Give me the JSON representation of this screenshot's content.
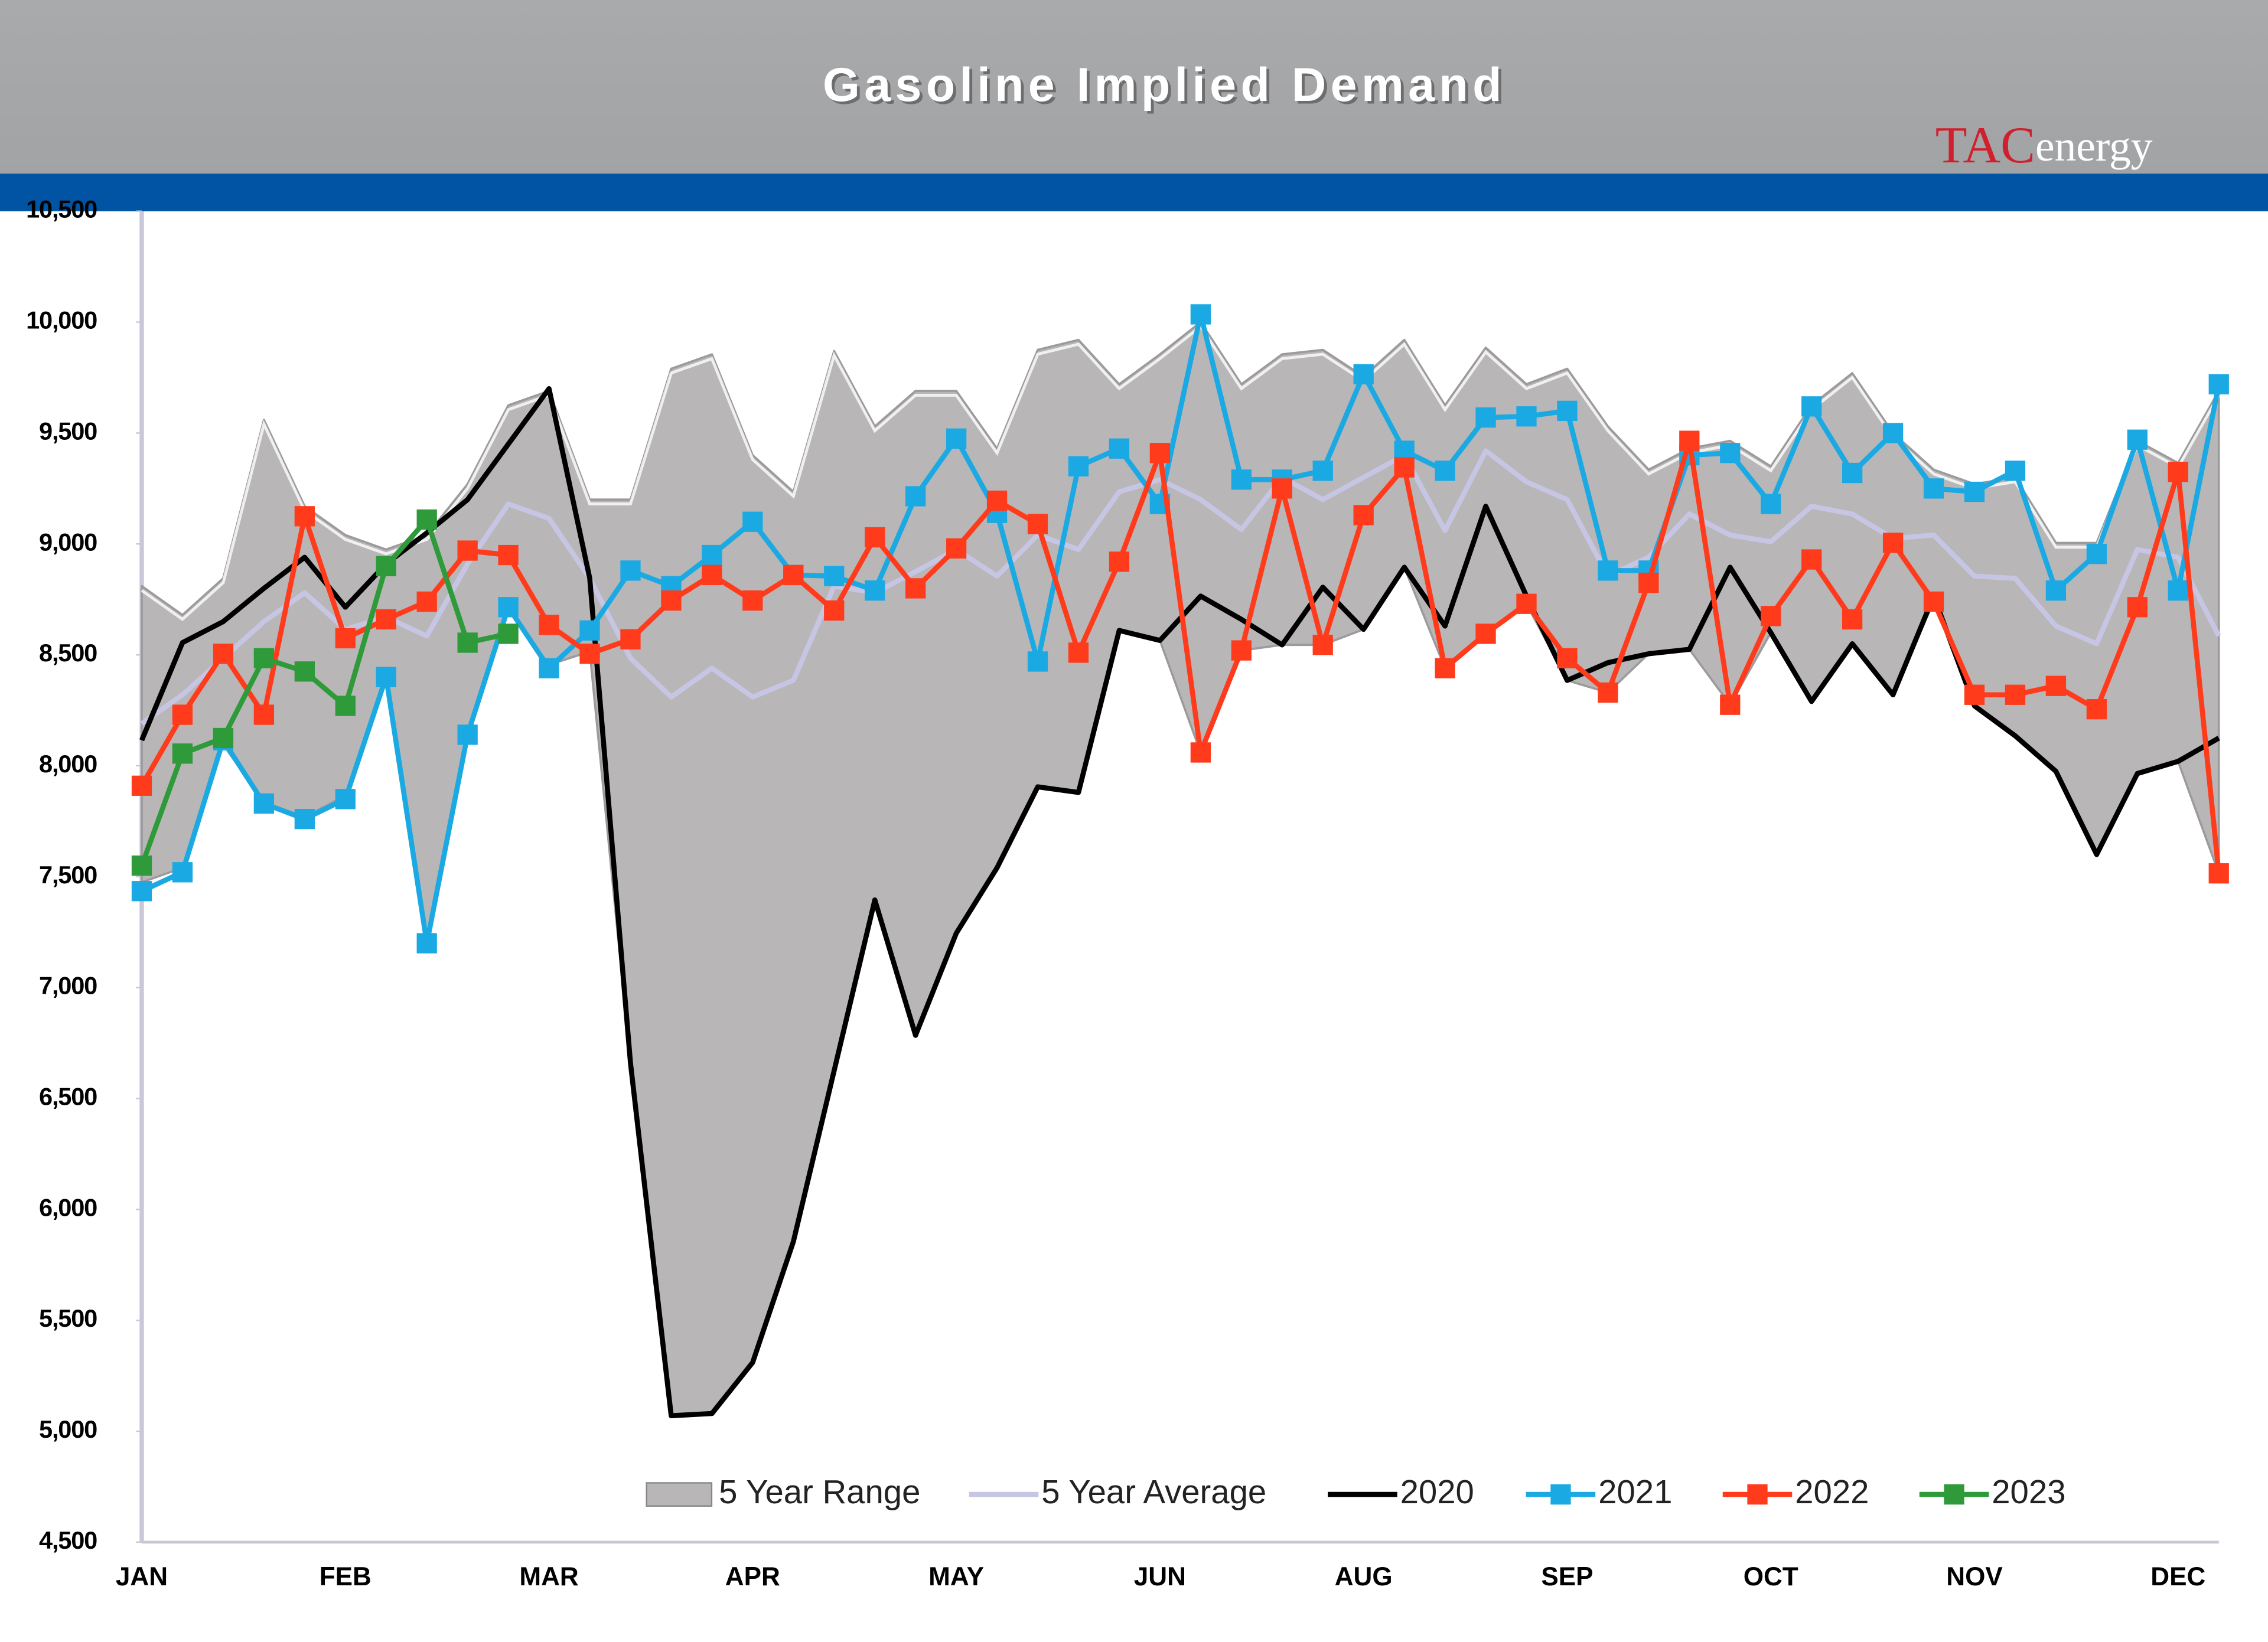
{
  "chart_data": {
    "type": "line",
    "title": "Gasoline Implied Demand",
    "logo": {
      "brand": "TAC",
      "suffix": "energy"
    },
    "categories": [
      "JAN",
      null,
      null,
      null,
      null,
      "FEB",
      null,
      null,
      null,
      null,
      "MAR",
      null,
      null,
      null,
      null,
      "APR",
      null,
      null,
      null,
      null,
      "MAY",
      null,
      null,
      null,
      null,
      "JUN",
      null,
      null,
      null,
      null,
      "AUG",
      null,
      null,
      null,
      null,
      "SEP",
      null,
      null,
      null,
      null,
      "OCT",
      null,
      null,
      null,
      null,
      "NOV",
      null,
      null,
      null,
      null,
      "DEC",
      null
    ],
    "ylim": [
      4500,
      10500
    ],
    "yticks": [
      {
        "value": 4500,
        "label": "4,500"
      },
      {
        "value": 5000,
        "label": "5,000"
      },
      {
        "value": 5500,
        "label": "5,500"
      },
      {
        "value": 6000,
        "label": "6,000"
      },
      {
        "value": 6500,
        "label": "6,500"
      },
      {
        "value": 7000,
        "label": "7,000"
      },
      {
        "value": 7500,
        "label": "7,500"
      },
      {
        "value": 8000,
        "label": "8,000"
      },
      {
        "value": 8500,
        "label": "8,500"
      },
      {
        "value": 9000,
        "label": "9,000"
      },
      {
        "value": 9500,
        "label": "9,500"
      },
      {
        "value": 10000,
        "label": "10,000"
      },
      {
        "value": 10500,
        "label": "10,500"
      }
    ],
    "grid": false,
    "legend": "bottom",
    "series": [
      {
        "name": "5 Year Range",
        "type": "range",
        "color": "#b8b6b6",
        "low": [
          7475,
          7540,
          8095,
          7835,
          7770,
          7865,
          8400,
          7215,
          8160,
          8715,
          8455,
          8515,
          6660,
          5070,
          5080,
          5310,
          5855,
          6625,
          7395,
          6785,
          7245,
          7540,
          7905,
          7880,
          8610,
          8565,
          8060,
          8520,
          8545,
          8545,
          8615,
          8895,
          8440,
          8595,
          8730,
          8385,
          8330,
          8505,
          8525,
          8275,
          8600,
          8290,
          8550,
          8320,
          8740,
          8270,
          8135,
          7975,
          7600,
          7965,
          8020,
          7515
        ],
        "high": [
          8810,
          8680,
          8845,
          9560,
          9170,
          9040,
          8975,
          9040,
          9270,
          9625,
          9690,
          9200,
          9200,
          9790,
          9855,
          9400,
          9235,
          9870,
          9530,
          9690,
          9690,
          9430,
          9875,
          9920,
          9720,
          9855,
          10000,
          9720,
          9855,
          9875,
          9755,
          9920,
          9625,
          9885,
          9720,
          9790,
          9530,
          9335,
          9430,
          9465,
          9350,
          9625,
          9770,
          9500,
          9335,
          9270,
          9300,
          9005,
          9005,
          9465,
          9365,
          9690
        ]
      },
      {
        "name": "5 Year Average",
        "type": "line",
        "color": "#c6c5e3",
        "marker": false,
        "values": [
          8190,
          8320,
          8485,
          8650,
          8780,
          8615,
          8670,
          8585,
          8910,
          9180,
          9115,
          8845,
          8485,
          8310,
          8440,
          8310,
          8385,
          8810,
          8780,
          8875,
          8975,
          8855,
          9040,
          8975,
          9235,
          9290,
          9200,
          9065,
          9300,
          9200,
          9300,
          9400,
          9060,
          9420,
          9280,
          9200,
          8855,
          8940,
          9135,
          9040,
          9010,
          9170,
          9135,
          9025,
          9040,
          8855,
          8845,
          8630,
          8550,
          8975,
          8940,
          8585
        ]
      },
      {
        "name": "2020",
        "type": "line",
        "color": "#000000",
        "marker": false,
        "values": [
          8115,
          8555,
          8650,
          8800,
          8940,
          8715,
          8910,
          9050,
          9200,
          9450,
          9700,
          8845,
          6660,
          5070,
          5080,
          5310,
          5855,
          6625,
          7395,
          6785,
          7245,
          7540,
          7905,
          7880,
          8610,
          8565,
          8765,
          8660,
          8545,
          8805,
          8615,
          8895,
          8630,
          9170,
          8765,
          8385,
          8465,
          8505,
          8525,
          8895,
          8600,
          8290,
          8550,
          8320,
          8765,
          8270,
          8135,
          7975,
          7600,
          7965,
          8020,
          8125
        ]
      },
      {
        "name": "2021",
        "type": "line",
        "color": "#1ba9e3",
        "marker": true,
        "values": [
          7435,
          7520,
          8115,
          7830,
          7760,
          7850,
          8400,
          7200,
          8140,
          8715,
          8440,
          8610,
          8880,
          8810,
          8950,
          9100,
          8860,
          8855,
          8790,
          9215,
          9475,
          9140,
          8470,
          9350,
          9430,
          9180,
          10035,
          9290,
          9290,
          9330,
          9765,
          9420,
          9330,
          9570,
          9575,
          9600,
          8880,
          8880,
          9400,
          9410,
          9180,
          9620,
          9320,
          9500,
          9250,
          9235,
          9330,
          8790,
          8955,
          9470,
          8790,
          9720
        ]
      },
      {
        "name": "2022",
        "type": "line",
        "color": "#ff3b1c",
        "marker": true,
        "values": [
          7910,
          8230,
          8505,
          8230,
          9125,
          8575,
          8660,
          8740,
          8970,
          8950,
          8635,
          8505,
          8570,
          8745,
          8860,
          8745,
          8860,
          8700,
          9030,
          8800,
          8980,
          9195,
          9090,
          8510,
          8920,
          9410,
          8060,
          8520,
          9250,
          8545,
          9130,
          9345,
          8440,
          8595,
          8730,
          8485,
          8330,
          8825,
          9465,
          8275,
          8675,
          8930,
          8660,
          9005,
          8740,
          8320,
          8320,
          8360,
          8255,
          8715,
          9325,
          7515
        ]
      },
      {
        "name": "2023",
        "type": "line",
        "color": "#2e9a3a",
        "marker": true,
        "values": [
          7550,
          8055,
          8125,
          8485,
          8425,
          8270,
          8900,
          9110,
          8555,
          8595,
          null,
          null,
          null,
          null,
          null,
          null,
          null,
          null,
          null,
          null,
          null,
          null,
          null,
          null,
          null,
          null,
          null,
          null,
          null,
          null,
          null,
          null,
          null,
          null,
          null,
          null,
          null,
          null,
          null,
          null,
          null,
          null,
          null,
          null,
          null,
          null,
          null,
          null,
          null,
          null,
          null,
          null
        ]
      }
    ]
  }
}
